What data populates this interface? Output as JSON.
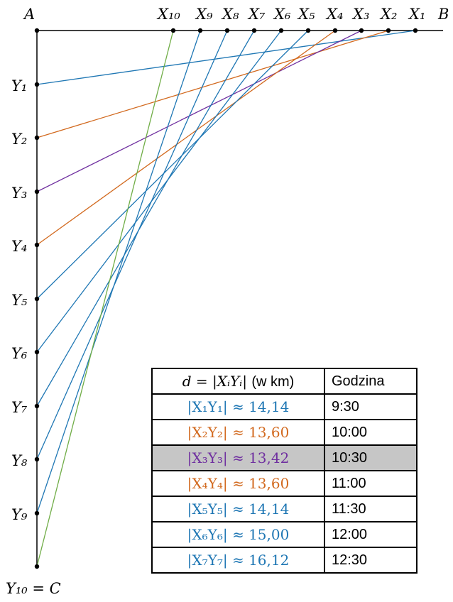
{
  "diagram": {
    "corner_a": "A",
    "corner_b": "B",
    "corner_c": "Y₁₀ = C",
    "x_points": [
      "X₁",
      "X₂",
      "X₃",
      "X₄",
      "X₅",
      "X₆",
      "X₇",
      "X₈",
      "X₉",
      "X₁₀"
    ],
    "y_points": [
      "Y₁",
      "Y₂",
      "Y₃",
      "Y₄",
      "Y₅",
      "Y₆",
      "Y₇",
      "Y₈",
      "Y₉"
    ],
    "segment_colors": [
      "#1f77b4",
      "#d2691e",
      "#7030a0",
      "#d2691e",
      "#1f77b4",
      "#1f77b4",
      "#1f77b4",
      "#1f77b4",
      "#1f77b4",
      "#70ad47"
    ]
  },
  "table": {
    "header_distance_math": "d = |XᵢYᵢ|",
    "header_distance_unit": "(w km)",
    "header_time": "Godzina",
    "rows": [
      {
        "label": "|X₁Y₁| ≈ 14,14",
        "time": "9:30",
        "color": "#1f77b4"
      },
      {
        "label": "|X₂Y₂| ≈ 13,60",
        "time": "10:00",
        "color": "#d2691e"
      },
      {
        "label": "|X₃Y₃| ≈ 13,42",
        "time": "10:30",
        "color": "#7030a0"
      },
      {
        "label": "|X₄Y₄| ≈ 13,60",
        "time": "11:00",
        "color": "#d2691e"
      },
      {
        "label": "|X₅Y₅| ≈ 14,14",
        "time": "11:30",
        "color": "#1f77b4"
      },
      {
        "label": "|X₆Y₆| ≈ 15,00",
        "time": "12:00",
        "color": "#1f77b4"
      },
      {
        "label": "|X₇Y₇| ≈ 16,12",
        "time": "12:30",
        "color": "#1f77b4"
      }
    ]
  }
}
